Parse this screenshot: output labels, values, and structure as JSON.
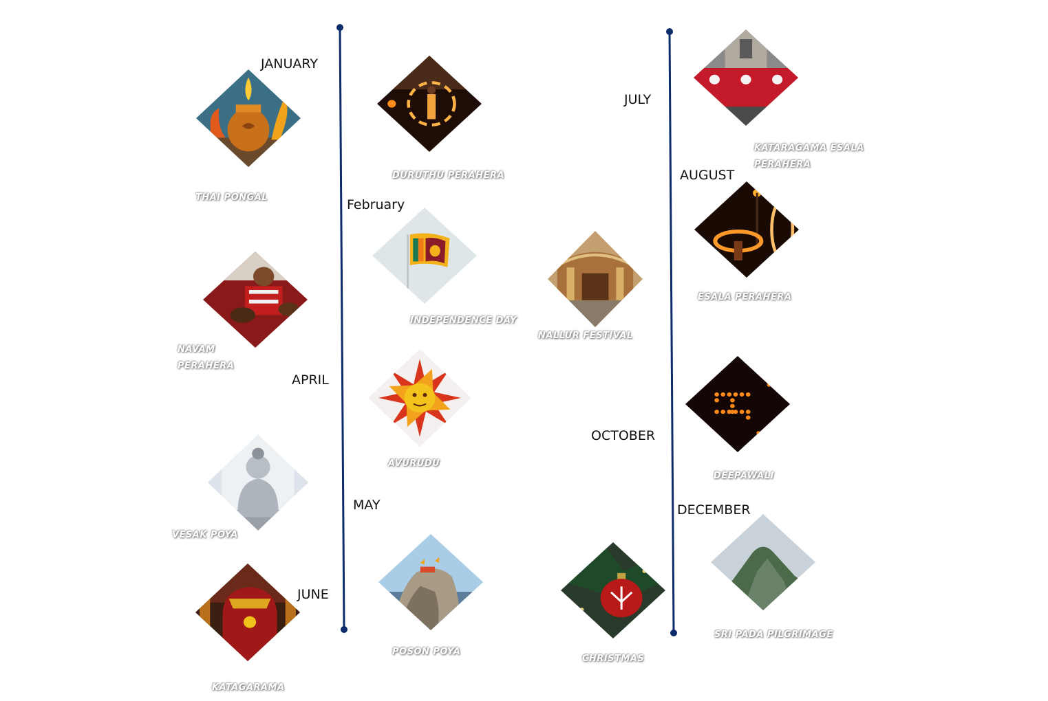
{
  "months": {
    "january": "JANUARY",
    "february": "February",
    "april": "APRIL",
    "may": "MAY",
    "june": "JUNE",
    "july": "JULY",
    "august": "AUGUST",
    "october": "OCTOBER",
    "december": "DECEMBER"
  },
  "events": {
    "thai_pongal": "THAI PONGAL",
    "duruthu_perahera": "DURUTHU PERAHERA",
    "independence_day": "INDEPENDENCE DAY",
    "navam_perahera": "NAVAM PERAHERA",
    "avurudu": "AVURUDU",
    "vesak_poya": "VESAK POYA",
    "poson_poya": "POSON POYA",
    "katagarama": "KATAGARAMA",
    "nallur_festival": "NALLUR FESTIVAL",
    "christmas": "CHRISTMAS",
    "kataragama_esala_perahera": "KATARAGAMA ESALA PERAHERA",
    "esala_perahera": "ESALA PERAHERA",
    "deepawali": "DEEPAWALI",
    "sri_pada_pilgrimage": "SRI PADA PILGRIMAGE"
  },
  "colors": {
    "timeline": "#0d2c6b",
    "month_text": "#111111",
    "event_text": "#ffffff"
  },
  "images": [
    "pongal-pot-image",
    "fire-dancer-image",
    "sri-lanka-flag-image",
    "drummers-image",
    "sun-emblem-image",
    "buddha-statue-image",
    "mihintale-rock-image",
    "decorated-elephant-image",
    "nallur-temple-image",
    "christmas-ornament-image",
    "perahera-elephants-image",
    "fire-ring-image",
    "oil-lamps-image",
    "adams-peak-image"
  ]
}
